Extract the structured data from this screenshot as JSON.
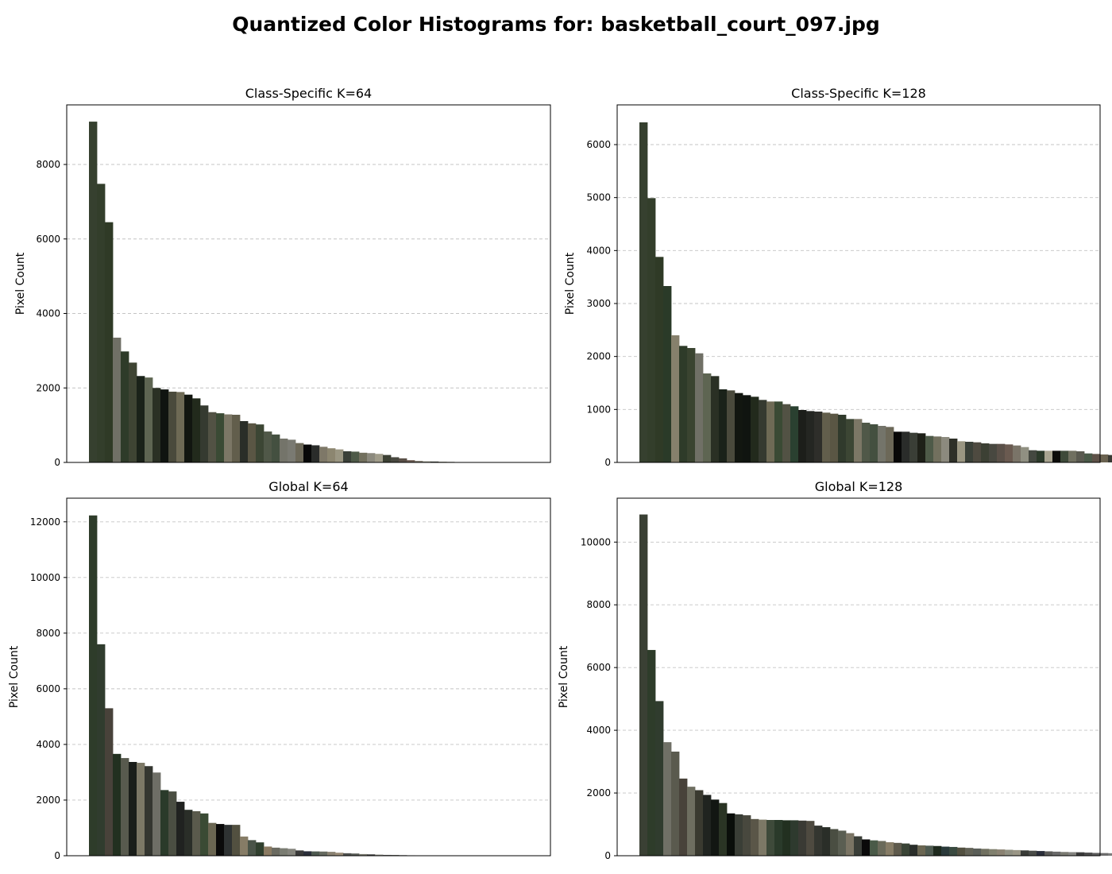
{
  "figure": {
    "suptitle": "Quantized Color Histograms for: basketball_court_097.jpg"
  },
  "chart_data": [
    {
      "type": "bar",
      "title": "Class-Specific K=64",
      "xlabel": "",
      "ylabel": "Pixel Count",
      "ylim": [
        0,
        9600
      ],
      "yticks": [
        0,
        2000,
        4000,
        6000,
        8000
      ],
      "xticks": [],
      "grid": "y-dashed",
      "values": [
        9150,
        7480,
        6450,
        3350,
        2980,
        2680,
        2320,
        2280,
        2000,
        1960,
        1900,
        1890,
        1820,
        1720,
        1530,
        1350,
        1320,
        1290,
        1280,
        1110,
        1050,
        1020,
        830,
        750,
        640,
        610,
        520,
        480,
        460,
        420,
        380,
        350,
        300,
        290,
        260,
        250,
        230,
        200,
        140,
        110,
        60,
        40,
        30,
        25,
        20,
        15,
        10,
        8,
        6,
        5,
        5,
        4
      ],
      "colors": [
        "#36402f",
        "#333e2b",
        "#2f3a26",
        "#707066",
        "#2e3b29",
        "#3e4433",
        "#1a2219",
        "#5e6552",
        "#2a3024",
        "#101410",
        "#4a4a3c",
        "#6e6a55",
        "#121610",
        "#222a1c",
        "#353a30",
        "#525244",
        "#3a4a34",
        "#7c7766",
        "#625e4c",
        "#2a2e28",
        "#5a5644",
        "#3c4634",
        "#505848",
        "#445040",
        "#74746a",
        "#7a7a72",
        "#6c6858",
        "#080808",
        "#2a2c2a",
        "#7e7868",
        "#8c8670",
        "#9a9682",
        "#3a4038",
        "#4e5a48",
        "#72705e",
        "#8c8a7e",
        "#a09c8a",
        "#3c4034",
        "#484840",
        "#5a5048",
        "#6a5a50",
        "#7a7468",
        "#909082",
        "#444840",
        "#888878",
        "#707060",
        "#5a5a50",
        "#b0b0a0",
        "#303030",
        "#606058",
        "#484c44",
        "#505050"
      ]
    },
    {
      "type": "bar",
      "title": "Class-Specific K=128",
      "xlabel": "",
      "ylabel": "Pixel Count",
      "ylim": [
        0,
        6750
      ],
      "yticks": [
        0,
        1000,
        2000,
        3000,
        4000,
        5000,
        6000
      ],
      "xticks": [],
      "grid": "y-dashed",
      "values": [
        6420,
        4990,
        3880,
        3330,
        2400,
        2200,
        2160,
        2060,
        1680,
        1630,
        1380,
        1360,
        1310,
        1270,
        1240,
        1180,
        1150,
        1150,
        1100,
        1060,
        990,
        970,
        960,
        940,
        920,
        900,
        820,
        820,
        750,
        720,
        690,
        670,
        580,
        580,
        560,
        550,
        500,
        490,
        480,
        450,
        400,
        390,
        380,
        360,
        350,
        350,
        340,
        320,
        290,
        230,
        220,
        220,
        220,
        220,
        220,
        210,
        170,
        160,
        150,
        140,
        130,
        120,
        120,
        110,
        100,
        95,
        90,
        85,
        80,
        80,
        75,
        75,
        70,
        65,
        60,
        55,
        50,
        45,
        40,
        35,
        30,
        28,
        26,
        24,
        22,
        20,
        18,
        16,
        14,
        12,
        10,
        9,
        8,
        7,
        6,
        5,
        5,
        4,
        4,
        3
      ],
      "colors": [
        "#36402f",
        "#333e2b",
        "#2f3a26",
        "#2a3a28",
        "#86806c",
        "#2e3b29",
        "#3a4430",
        "#707066",
        "#5e6552",
        "#2a3024",
        "#1a2219",
        "#4a4a3c",
        "#121610",
        "#101410",
        "#222a1c",
        "#353a30",
        "#6e6a55",
        "#3a4a34",
        "#525244",
        "#2a4030",
        "#1c1e1a",
        "#242622",
        "#2e2e2a",
        "#625e4c",
        "#5a5644",
        "#303a2c",
        "#3c4634",
        "#7c7766",
        "#505848",
        "#445040",
        "#74746a",
        "#6c6858",
        "#080808",
        "#2a2c2a",
        "#3a3e36",
        "#1e2018",
        "#4e5a48",
        "#72705e",
        "#8c8a7e",
        "#2e3028",
        "#9a9682",
        "#3a4038",
        "#4e4a40",
        "#3c4034",
        "#484840",
        "#5a5048",
        "#6a5a50",
        "#7a7468",
        "#909082",
        "#444840",
        "#2c3a2a",
        "#a8a490",
        "#0c0c0a",
        "#3e4a3a",
        "#707060",
        "#5a5a50",
        "#4a5a48",
        "#5e5248",
        "#6a6250",
        "#3a3a34",
        "#888878",
        "#7e7a6a",
        "#606058",
        "#484c44",
        "#505050",
        "#2a2a26",
        "#303a30",
        "#1a1a18",
        "#404840",
        "#5a6050",
        "#6a6a60",
        "#3e3a34",
        "#4c4840",
        "#585448",
        "#66625a",
        "#74706a",
        "#828070",
        "#8a8678",
        "#989488",
        "#a6a294",
        "#b2ae9e",
        "#3a3e34",
        "#464a40",
        "#52564c",
        "#5e6258",
        "#6a6e64",
        "#767a70",
        "#82867c",
        "#8e9288",
        "#9a9e94",
        "#a6aaa0",
        "#4a4a44",
        "#565650",
        "#62625c",
        "#6e6e68",
        "#7a7a74",
        "#868680",
        "#92928c",
        "#9e9e98",
        "#aaaaa4"
      ]
    },
    {
      "type": "bar",
      "title": "Global K=64",
      "xlabel": "",
      "ylabel": "Pixel Count",
      "ylim": [
        0,
        12850
      ],
      "yticks": [
        0,
        2000,
        4000,
        6000,
        8000,
        10000,
        12000
      ],
      "xticks": [],
      "grid": "y-dashed",
      "values": [
        12230,
        7600,
        5300,
        3660,
        3510,
        3370,
        3340,
        3220,
        2990,
        2360,
        2310,
        1940,
        1650,
        1600,
        1520,
        1180,
        1140,
        1110,
        1110,
        690,
        560,
        480,
        330,
        290,
        270,
        250,
        190,
        160,
        155,
        150,
        140,
        110,
        90,
        80,
        60,
        50,
        40,
        30,
        25,
        20,
        15,
        12,
        10,
        8,
        6,
        5,
        4
      ],
      "colors": [
        "#2e3c2a",
        "#303c2e",
        "#48423a",
        "#223020",
        "#585a4e",
        "#1a1e1a",
        "#7c7866",
        "#343630",
        "#6e6e66",
        "#2a3a2a",
        "#4a4e42",
        "#202220",
        "#2a2e28",
        "#5a5a4c",
        "#3a4a34",
        "#6a6652",
        "#0a0a0a",
        "#2e3232",
        "#525040",
        "#867c66",
        "#4a5448",
        "#30402e",
        "#8a7a62",
        "#6a6a60",
        "#7a7c72",
        "#84847c",
        "#3a3a3a",
        "#2a2e3a",
        "#4e5a50",
        "#666a60",
        "#8a8272",
        "#9a8c78",
        "#505250",
        "#5a5e58",
        "#7a7a70",
        "#444444",
        "#888880",
        "#6a6a6a",
        "#4a4c48",
        "#5a5a5a",
        "#7a7a7a",
        "#3a3c38",
        "#606060",
        "#505050",
        "#909090",
        "#707070",
        "#a0a0a0"
      ]
    },
    {
      "type": "bar",
      "title": "Global K=128",
      "xlabel": "",
      "ylabel": "Pixel Count",
      "ylim": [
        0,
        11400
      ],
      "yticks": [
        0,
        2000,
        4000,
        6000,
        8000,
        10000
      ],
      "xticks": [],
      "grid": "y-dashed",
      "values": [
        10880,
        6560,
        4930,
        3620,
        3320,
        2460,
        2200,
        2090,
        1940,
        1790,
        1680,
        1350,
        1320,
        1290,
        1170,
        1150,
        1140,
        1140,
        1130,
        1130,
        1120,
        1110,
        960,
        910,
        850,
        800,
        720,
        620,
        520,
        490,
        470,
        430,
        410,
        390,
        350,
        330,
        320,
        310,
        290,
        280,
        260,
        250,
        230,
        220,
        210,
        200,
        190,
        180,
        170,
        160,
        150,
        140,
        130,
        120,
        115,
        110,
        100,
        90,
        85,
        80,
        70,
        65,
        60,
        55,
        50,
        45,
        40,
        35,
        30,
        25,
        22,
        20,
        18,
        15,
        12,
        10,
        8,
        6,
        5,
        4,
        3,
        3
      ],
      "colors": [
        "#3a4034",
        "#2e3c2a",
        "#303c2e",
        "#707066",
        "#5a5a4e",
        "#48423a",
        "#6e6e60",
        "#3a3a30",
        "#202420",
        "#121612",
        "#2a3424",
        "#0a0e0a",
        "#3a3e36",
        "#48483e",
        "#5a5648",
        "#7c7866",
        "#3e4a3a",
        "#2a3a2a",
        "#223020",
        "#2e3a2e",
        "#3a3a34",
        "#4e4a40",
        "#343630",
        "#2a2e28",
        "#4a4e42",
        "#5a5e52",
        "#7a7464",
        "#3a3e38",
        "#0a0a0a",
        "#4a5a48",
        "#6a6a5a",
        "#867c66",
        "#5e5a4c",
        "#3a4436",
        "#2a2e2a",
        "#6a6652",
        "#4e5a50",
        "#1e2a1e",
        "#2a3a3a",
        "#3a4a40",
        "#525040",
        "#626256",
        "#5a5e58",
        "#707060",
        "#80806e",
        "#8a8272",
        "#909082",
        "#9a9686",
        "#3a3c38",
        "#4a4c48",
        "#2a2e3a",
        "#5a5a58",
        "#6a6a6a",
        "#7a7a72",
        "#848480",
        "#3a3a3a",
        "#4c4c4c",
        "#5c5c5c",
        "#6c6c6c",
        "#7c7c7c",
        "#8c8c8c",
        "#9c9c9c",
        "#444844",
        "#545854",
        "#646864",
        "#747874",
        "#848884",
        "#949894",
        "#a4a8a4",
        "#3e4038",
        "#4e5048",
        "#5e6058",
        "#6e7068",
        "#7e8078",
        "#8e9088",
        "#9ea098",
        "#aeb0a8",
        "#505448",
        "#606458",
        "#707468",
        "#808478",
        "#909488"
      ]
    }
  ]
}
